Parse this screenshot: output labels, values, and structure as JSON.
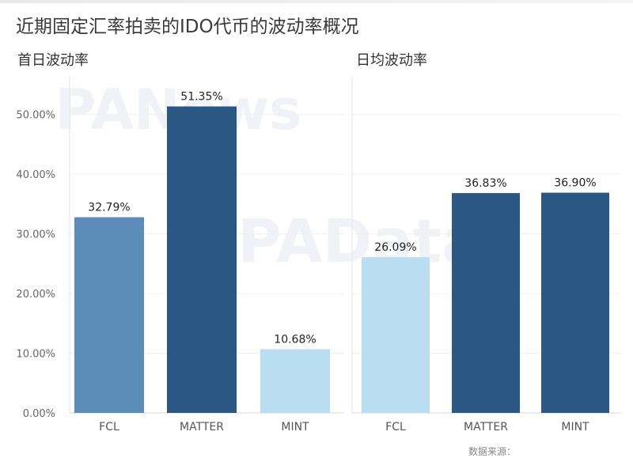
{
  "title": "近期固定汇率拍卖的IDO代币的波动率概况",
  "watermarks": [
    "PANews",
    "PAData"
  ],
  "footer": "数据来源：",
  "chart_data": [
    {
      "type": "bar",
      "title": "首日波动率",
      "categories": [
        "FCL",
        "MATTER",
        "MINT"
      ],
      "values": [
        32.79,
        51.35,
        10.68
      ],
      "value_labels": [
        "32.79%",
        "51.35%",
        "10.68%"
      ],
      "colors": [
        "#5b8db8",
        "#2a5783",
        "#b9ddf1"
      ],
      "ylim": [
        0,
        55
      ],
      "yticks": [
        0,
        10,
        20,
        30,
        40,
        50
      ],
      "ytick_labels": [
        "0.00%",
        "10.00%",
        "20.00%",
        "30.00%",
        "40.00%",
        "50.00%"
      ],
      "grid": true
    },
    {
      "type": "bar",
      "title": "日均波动率",
      "categories": [
        "FCL",
        "MATTER",
        "MINT"
      ],
      "values": [
        26.09,
        36.83,
        36.9
      ],
      "value_labels": [
        "26.09%",
        "36.83%",
        "36.90%"
      ],
      "colors": [
        "#b9ddf1",
        "#2a5783",
        "#2a5783"
      ],
      "ylim": [
        0,
        55
      ],
      "grid": true
    }
  ]
}
